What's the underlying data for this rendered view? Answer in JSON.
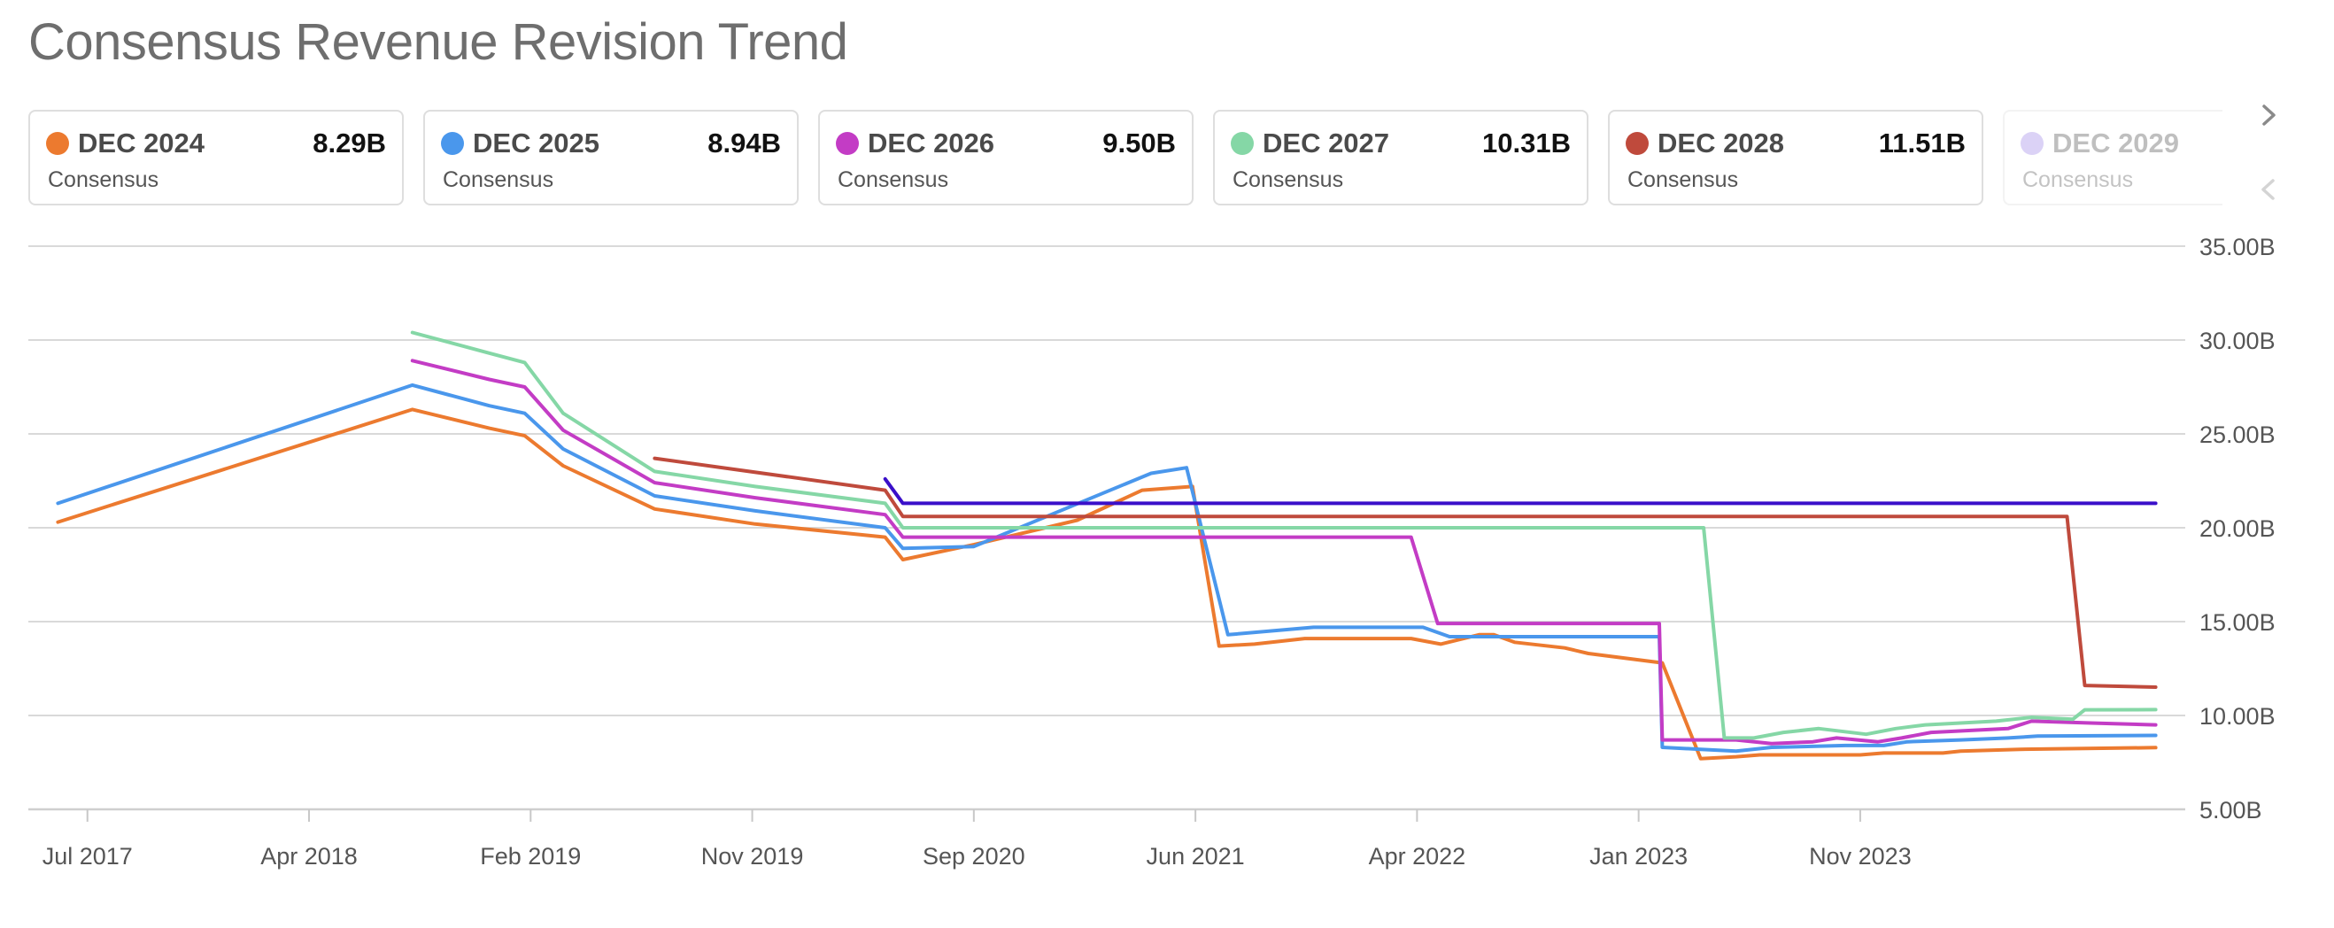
{
  "title": "Consensus Revenue Revision Trend",
  "colors": {
    "dec2024": "#ec7a2f",
    "dec2025": "#4a97ec",
    "dec2026": "#c33cc5",
    "dec2027": "#85d7a6",
    "dec2028": "#bf4a3c",
    "dec2029": "#9a80e8",
    "dec2029_line": "#3a0fc9",
    "grid": "#d9d9d9",
    "axis_text": "#555555"
  },
  "cards": [
    {
      "name": "DEC 2024",
      "value": "8.29B",
      "sub": "Consensus",
      "color": "#ec7a2f"
    },
    {
      "name": "DEC 2025",
      "value": "8.94B",
      "sub": "Consensus",
      "color": "#4a97ec"
    },
    {
      "name": "DEC 2026",
      "value": "9.50B",
      "sub": "Consensus",
      "color": "#c33cc5"
    },
    {
      "name": "DEC 2027",
      "value": "10.31B",
      "sub": "Consensus",
      "color": "#85d7a6"
    },
    {
      "name": "DEC 2028",
      "value": "11.51B",
      "sub": "Consensus",
      "color": "#bf4a3c"
    },
    {
      "name": "DEC 2029",
      "value": "",
      "sub": "Consensus",
      "color": "#9a80e8"
    }
  ],
  "nav": {
    "next": "chevron-right",
    "prev": "chevron-left"
  },
  "chart_data": {
    "type": "line",
    "x_range": [
      2017.3,
      2024.6
    ],
    "ylim": [
      5,
      35
    ],
    "y_ticks": [
      5,
      10,
      15,
      20,
      25,
      30,
      35
    ],
    "y_tick_labels": [
      "5.00B",
      "10.00B",
      "15.00B",
      "20.00B",
      "25.00B",
      "30.00B",
      "35.00B"
    ],
    "x_ticks": [
      2017.5,
      2018.25,
      2019.0,
      2019.75,
      2020.5,
      2021.25,
      2022.0,
      2022.75,
      2023.5
    ],
    "x_tick_labels": [
      "Jul 2017",
      "Apr 2018",
      "Feb 2019",
      "Nov 2019",
      "Sep 2020",
      "Jun 2021",
      "Apr 2022",
      "Jan 2023",
      "Nov 2023"
    ],
    "legend": "top",
    "series": [
      {
        "name": "DEC 2024",
        "color": "#ec7a2f",
        "points": [
          [
            2017.4,
            20.3
          ],
          [
            2018.6,
            26.3
          ],
          [
            2018.86,
            25.3
          ],
          [
            2018.98,
            24.9
          ],
          [
            2019.11,
            23.3
          ],
          [
            2019.42,
            21.0
          ],
          [
            2019.76,
            20.2
          ],
          [
            2020.2,
            19.5
          ],
          [
            2020.26,
            18.3
          ],
          [
            2020.5,
            19.1
          ],
          [
            2020.85,
            20.4
          ],
          [
            2021.07,
            22.0
          ],
          [
            2021.24,
            22.2
          ],
          [
            2021.33,
            13.7
          ],
          [
            2021.45,
            13.8
          ],
          [
            2021.62,
            14.1
          ],
          [
            2021.98,
            14.1
          ],
          [
            2022.08,
            13.8
          ],
          [
            2022.21,
            14.3
          ],
          [
            2022.26,
            14.3
          ],
          [
            2022.33,
            13.9
          ],
          [
            2022.5,
            13.6
          ],
          [
            2022.58,
            13.3
          ],
          [
            2022.83,
            12.8
          ],
          [
            2022.96,
            7.7
          ],
          [
            2023.08,
            7.8
          ],
          [
            2023.16,
            7.9
          ],
          [
            2023.5,
            7.9
          ],
          [
            2023.58,
            8.0
          ],
          [
            2023.78,
            8.0
          ],
          [
            2023.84,
            8.1
          ],
          [
            2024.04,
            8.2
          ],
          [
            2024.5,
            8.29
          ]
        ]
      },
      {
        "name": "DEC 2025",
        "color": "#4a97ec",
        "points": [
          [
            2017.4,
            21.3
          ],
          [
            2018.6,
            27.6
          ],
          [
            2018.86,
            26.5
          ],
          [
            2018.98,
            26.1
          ],
          [
            2019.11,
            24.2
          ],
          [
            2019.42,
            21.7
          ],
          [
            2019.76,
            20.9
          ],
          [
            2020.2,
            20.0
          ],
          [
            2020.26,
            18.9
          ],
          [
            2020.5,
            19.0
          ],
          [
            2021.1,
            22.9
          ],
          [
            2021.22,
            23.2
          ],
          [
            2021.36,
            14.3
          ],
          [
            2021.65,
            14.7
          ],
          [
            2022.02,
            14.7
          ],
          [
            2022.11,
            14.2
          ],
          [
            2022.52,
            14.2
          ],
          [
            2022.64,
            14.2
          ],
          [
            2022.82,
            14.2
          ],
          [
            2022.83,
            8.3
          ],
          [
            2022.96,
            8.2
          ],
          [
            2023.08,
            8.1
          ],
          [
            2023.2,
            8.3
          ],
          [
            2023.45,
            8.4
          ],
          [
            2023.58,
            8.4
          ],
          [
            2023.66,
            8.6
          ],
          [
            2023.84,
            8.7
          ],
          [
            2024.0,
            8.8
          ],
          [
            2024.1,
            8.9
          ],
          [
            2024.5,
            8.94
          ]
        ]
      },
      {
        "name": "DEC 2026",
        "color": "#c33cc5",
        "points": [
          [
            2018.6,
            28.9
          ],
          [
            2018.86,
            27.9
          ],
          [
            2018.98,
            27.5
          ],
          [
            2019.11,
            25.2
          ],
          [
            2019.42,
            22.4
          ],
          [
            2019.76,
            21.6
          ],
          [
            2020.2,
            20.7
          ],
          [
            2020.26,
            19.5
          ],
          [
            2021.33,
            19.5
          ],
          [
            2021.98,
            19.5
          ],
          [
            2022.07,
            14.9
          ],
          [
            2022.82,
            14.9
          ],
          [
            2022.83,
            8.7
          ],
          [
            2023.08,
            8.7
          ],
          [
            2023.2,
            8.5
          ],
          [
            2023.34,
            8.6
          ],
          [
            2023.42,
            8.8
          ],
          [
            2023.56,
            8.6
          ],
          [
            2023.64,
            8.8
          ],
          [
            2023.74,
            9.1
          ],
          [
            2024.0,
            9.3
          ],
          [
            2024.08,
            9.7
          ],
          [
            2024.28,
            9.6
          ],
          [
            2024.5,
            9.5
          ]
        ]
      },
      {
        "name": "DEC 2027",
        "color": "#85d7a6",
        "points": [
          [
            2018.6,
            30.4
          ],
          [
            2018.86,
            29.3
          ],
          [
            2018.98,
            28.8
          ],
          [
            2019.11,
            26.1
          ],
          [
            2019.42,
            23.0
          ],
          [
            2019.76,
            22.2
          ],
          [
            2020.2,
            21.3
          ],
          [
            2020.26,
            20.0
          ],
          [
            2021.33,
            20.0
          ],
          [
            2022.73,
            20.0
          ],
          [
            2022.97,
            20.0
          ],
          [
            2023.04,
            8.8
          ],
          [
            2023.14,
            8.8
          ],
          [
            2023.24,
            9.1
          ],
          [
            2023.36,
            9.3
          ],
          [
            2023.52,
            9.0
          ],
          [
            2023.62,
            9.3
          ],
          [
            2023.72,
            9.5
          ],
          [
            2023.96,
            9.7
          ],
          [
            2024.08,
            9.9
          ],
          [
            2024.22,
            9.8
          ],
          [
            2024.26,
            10.3
          ],
          [
            2024.5,
            10.31
          ]
        ]
      },
      {
        "name": "DEC 2028",
        "color": "#bf4a3c",
        "points": [
          [
            2019.42,
            23.7
          ],
          [
            2020.2,
            22.0
          ],
          [
            2020.26,
            20.6
          ],
          [
            2021.33,
            20.6
          ],
          [
            2024.2,
            20.6
          ],
          [
            2024.26,
            11.6
          ],
          [
            2024.5,
            11.51
          ]
        ]
      },
      {
        "name": "DEC 2029",
        "color": "#3a0fc9",
        "points": [
          [
            2020.2,
            22.6
          ],
          [
            2020.26,
            21.3
          ],
          [
            2024.5,
            21.3
          ]
        ]
      }
    ]
  }
}
